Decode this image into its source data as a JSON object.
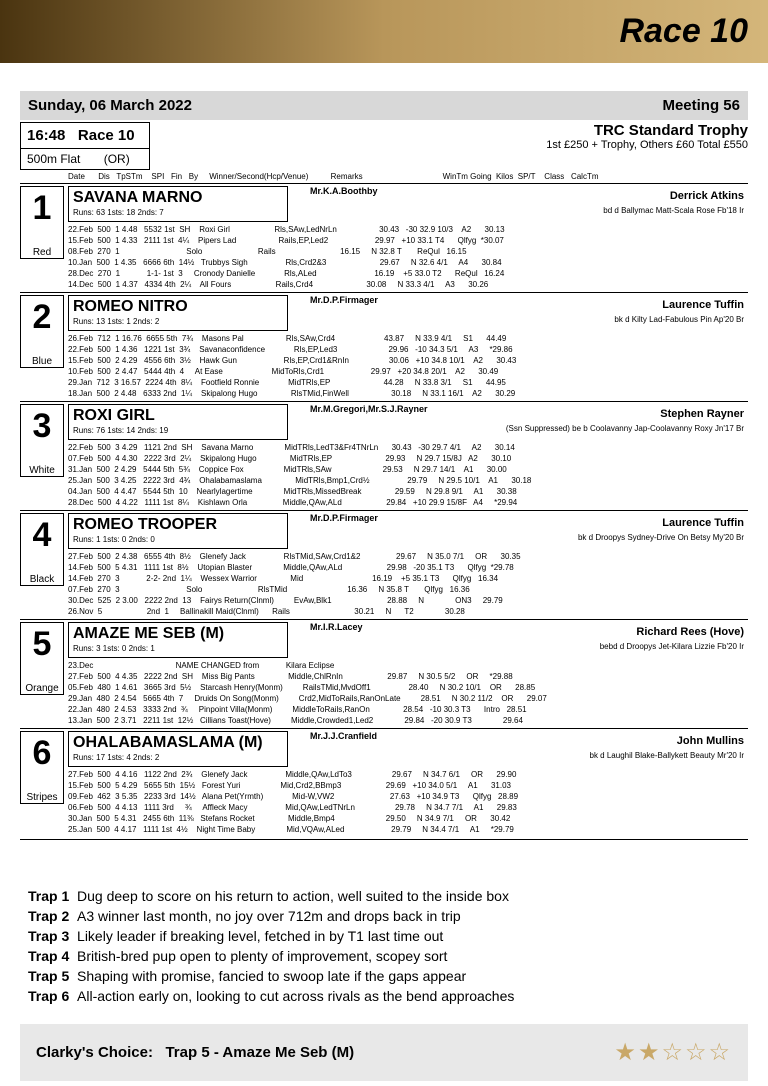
{
  "header": {
    "title": "Race 10"
  },
  "meeting": {
    "date": "Sunday, 06 March 2022",
    "meeting_no": "Meeting 56"
  },
  "race": {
    "time": "16:48",
    "label": "Race 10",
    "trophy": "TRC Standard Trophy",
    "prize": "1st £250 + Trophy, Others £60 Total £550",
    "distance": "500m Flat",
    "or": "(OR)"
  },
  "col_headers": "Date      Dis   TpSTm    SPI   Fin   By     Winner/Second(Hcp/Venue)          Remarks                                    WinTm Going  Kilos  SP/T    Class   CalcTm",
  "runners": [
    {
      "trap": "1",
      "color": "Red",
      "name": "SAVANA MARNO",
      "runs": "Runs: 63 1sts: 18 2nds: 7",
      "trainer": "Mr.K.A.Boothby",
      "owner": "Derrick Atkins",
      "breeding": "bd d Ballymac Matt-Scala Rose Fb'18 Ir",
      "form": [
        "22.Feb  500  1 4.48   5532 1st  SH    Roxi Girl                    Rls,SAw,LedNrLn                   30.43   -30 32.9 10/3    A2      30.13",
        "15.Feb  500  1 4.33   2111 1st  4¼    Pipers Lad                   Rails,EP,Led2                     29.97   +10 33.1 T4      Qlfyg  *30.07",
        "08.Feb  270  1                              Solo                         Rails                             16.15     N 32.8 T       ReQul   16.15",
        "10.Jan  500  1 4.35   6666 6th  14½   Trubbys Sigh                 Rls,Crd2&3                        29.67     N 32.6 4/1     A4      30.84",
        "28.Dec  270  1            1-1- 1st  3     Cronody Danielle             Rls,ALed                          16.19    +5 33.0 T2      ReQul   16.24",
        "14.Dec  500  1 4.37   4334 4th  2¼    All Fours                    Rails,Crd4                        30.08     N 33.3 4/1     A3      30.26"
      ]
    },
    {
      "trap": "2",
      "color": "Blue",
      "name": "ROMEO NITRO",
      "runs": "Runs: 13 1sts: 1 2nds: 2",
      "trainer": "Mr.D.P.Firmager",
      "owner": "Laurence Tuffin",
      "breeding": "bk d Kilty Lad-Fabulous Pin Ap'20 Br",
      "form": [
        "26.Feb  712  1 16.76  6655 5th  7¾    Masons Pal                   Rls,SAw,Crd4                      43.87     N 33.9 4/1     S1      44.49",
        "22.Feb  500  1 4.36   1221 1st  3¾    Savanaconfidence             Rls,EP,Led3                       29.96   -10 34.3 5/1     A3     *29.86",
        "15.Feb  500  2 4.29   4556 6th  3½    Hawk Gun                     Rls,EP,Crd1&RnIn                  30.06   +10 34.8 10/1    A2      30.43",
        "10.Feb  500  2 4.47   5444 4th  4     At Ease                      MidToRls,Crd1                     29.97   +20 34.8 20/1    A2      30.49",
        "29.Jan  712  3 16.57  2224 4th  8¼    Footfield Ronnie             MidTRls,EP                        44.28     N 33.8 3/1     S1      44.95",
        "18.Jan  500  2 4.48   6333 2nd  1¼    Skipalong Hugo               RlsTMid,FinWell                   30.18     N 33.1 16/1    A2      30.29"
      ]
    },
    {
      "trap": "3",
      "color": "White",
      "name": "ROXI GIRL",
      "runs": "Runs: 76 1sts: 14 2nds: 19",
      "trainer": "Mr.M.Gregori,Mr.S.J.Rayner",
      "owner": "Stephen Rayner",
      "breeding": "(Ssn Suppressed) be b Coolavanny Jap-Coolavanny Roxy Jn'17 Br",
      "form": [
        "22.Feb  500  3 4.29   1121 2nd  SH    Savana Marno              MidTRls,LedT3&Fr4TNrLn      30.43   -30 29.7 4/1     A2      30.14",
        "07.Feb  500  4 4.30   2222 3rd  2¼    Skipalong Hugo               MidTRls,EP                        29.93     N 29.7 15/8J   A2      30.10",
        "31.Jan  500  2 4.29   5444 5th  5¾    Coppice Fox                  MidTRls,SAw                       29.53     N 29.7 14/1    A1      30.00",
        "25.Jan  500  3 4.25   2222 3rd  4¾    Ohalabamaslama               MidTRls,Bmp1,Crd½                 29.79     N 29.5 10/1    A1      30.18",
        "04.Jan  500  4 4.47   5544 5th  10    Nearlylagertime              MidTRls,MissedBreak               29.59     N 29.8 9/1     A1      30.38",
        "28.Dec  500  4 4.22   1111 1st  8¼    Kishlawn Orla                Middle,QAw,ALd                    29.84   +10 29.9 15/8F   A4     *29.94"
      ]
    },
    {
      "trap": "4",
      "color": "Black",
      "name": "ROMEO TROOPER",
      "runs": "Runs: 1 1sts: 0 2nds: 0",
      "trainer": "Mr.D.P.Firmager",
      "owner": "Laurence Tuffin",
      "breeding": "bk d Droopys Sydney-Drive On Betsy My'20 Br",
      "form": [
        "27.Feb  500  2 4.38   6555 4th  8½    Glenefy Jack                 RlsTMid,SAw,Crd1&2                29.67     N 35.0 7/1     OR      30.35",
        "14.Feb  500  5 4.31   1111 1st  8½    Utopian Blaster              Middle,QAw,ALd                    29.98   -20 35.1 T3      Qlfyg  *29.78",
        "14.Feb  270  3            2-2- 2nd  1¼    Wessex Warrior               Mid                               16.19    +5 35.1 T3      Qlfyg   16.34",
        "07.Feb  270  3                              Solo                         RlsTMid                           16.36     N 35.8 T       Qlfyg   16.36",
        "30.Dec  525  2 3.00   2222 2nd  13    Fairys Return(Clnml)         EvAw,Blk1                         28.88     N              ON3     29.79",
        "26.Nov  5                    2nd  1     Ballinakill Maid(Clnml)      Rails                             30.21     N      T2              30.28"
      ]
    },
    {
      "trap": "5",
      "color": "Orange",
      "name": "AMAZE ME SEB (M)",
      "runs": "Runs: 3 1sts: 0 2nds: 1",
      "trainer": "Mr.I.R.Lacey",
      "owner": "Richard Rees (Hove)",
      "breeding": "bebd d Droopys Jet-Kilara Lizzie Fb'20 Ir",
      "form": [
        "23.Dec                                     NAME CHANGED from            Kilara Eclipse",
        "27.Feb  500  4 4.35   2222 2nd  SH    Miss Big Pants               Middle,ChlRnIn                    29.87     N 30.5 5/2     OR     *29.88",
        "05.Feb  480  1 4.61   3665 3rd  5½    Starcash Henry(Monm)         RailsTMid,MvdOff1                 28.40     N 30.2 10/1    OR      28.85",
        "29.Jan  480  2 4.54   5665 4th  7     Druids On Song(Monm)         Crd2,MidToRails,RanOnLate         28.51     N 30.2 11/2    OR      29.07",
        "22.Jan  480  2 4.53   3333 2nd  ¾     Pinpoint Villa(Monm)         MiddleToRails,RanOn               28.54   -10 30.3 T3      Intro   28.51",
        "13.Jan  500  2 3.71   2211 1st  12½   Cillians Toast(Hove)         Middle,Crowded1,Led2              29.84   -20 30.9 T3              29.64"
      ]
    },
    {
      "trap": "6",
      "color": "Stripes",
      "name": "OHALABAMASLAMA (M)",
      "runs": "Runs: 17 1sts: 4 2nds: 2",
      "trainer": "Mr.J.J.Cranfield",
      "owner": "John Mullins",
      "breeding": "bk d Laughil Blake-Ballykett Beauty Mr'20 Ir",
      "form": [
        "27.Feb  500  4 4.16   1122 2nd  2¾    Glenefy Jack                 Middle,QAw,LdTo3                  29.67     N 34.7 6/1     OR      29.90",
        "15.Feb  500  5 4.29   5655 5th  15½   Forest Yuri                  Mid,Crd2,BBmp3                    29.69   +10 34.0 5/1     A1      31.03",
        "09.Feb  462  3 5.35   2233 3rd  14½   Alana Pet(Yrmth)             Mid-W,VW2                         27.63   +10 34.9 T3      Qlfyg   28.89",
        "06.Feb  500  4 4.13   1111 3rd     ¾     Affleck Macy                 Mid,QAw,LedTNrLn                  29.78     N 34.7 7/1     A1      29.83",
        "30.Jan  500  5 4.31   2455 6th  11⅜   Stefans Rocket               Middle,Bmp4                       29.50     N 34.9 7/1     OR      30.42",
        "25.Jan  500  4 4.17   1111 1st  4½    Night Time Baby              Mid,VQAw,ALed                     29.79     N 34.4 7/1     A1     *29.79"
      ]
    }
  ],
  "tips": [
    {
      "trap": "Trap 1",
      "text": "Dug deep to score on his return to action, well suited to the inside box"
    },
    {
      "trap": "Trap 2",
      "text": "A3 winner last month, no joy over 712m and drops back in trip"
    },
    {
      "trap": "Trap 3",
      "text": "Likely leader if breaking level, fetched in by T1 last time out"
    },
    {
      "trap": "Trap 4",
      "text": "British-bred pup open to plenty of improvement, scopey sort"
    },
    {
      "trap": "Trap 5",
      "text": "Shaping with promise, fancied to swoop late if the gaps appear"
    },
    {
      "trap": "Trap 6",
      "text": "All-action early on, looking to cut across rivals as the bend approaches"
    }
  ],
  "choice": {
    "label": "Clarky's Choice:",
    "pick": "Trap 5 - Amaze Me Seb (M)",
    "stars_filled": 2,
    "stars_total": 5
  },
  "colors": {
    "banner_start": "#4a3410",
    "banner_mid": "#b8965a",
    "banner_end": "#d4b67a",
    "star": "#c9a868",
    "choice_bg": "#e8e8e8",
    "meeting_bg": "#d8d8d8"
  }
}
